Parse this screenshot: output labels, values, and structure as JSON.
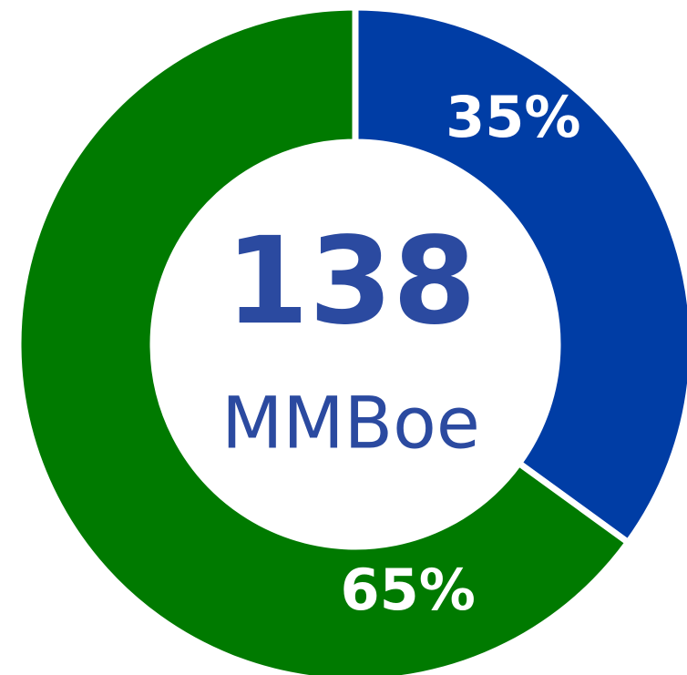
{
  "chart_data": {
    "type": "donut",
    "values": [
      35,
      65
    ],
    "value_labels": [
      "35%",
      "65%"
    ],
    "colors": [
      "#003da5",
      "#007a00"
    ],
    "center_value": 138,
    "center_label": "MMBoe"
  }
}
